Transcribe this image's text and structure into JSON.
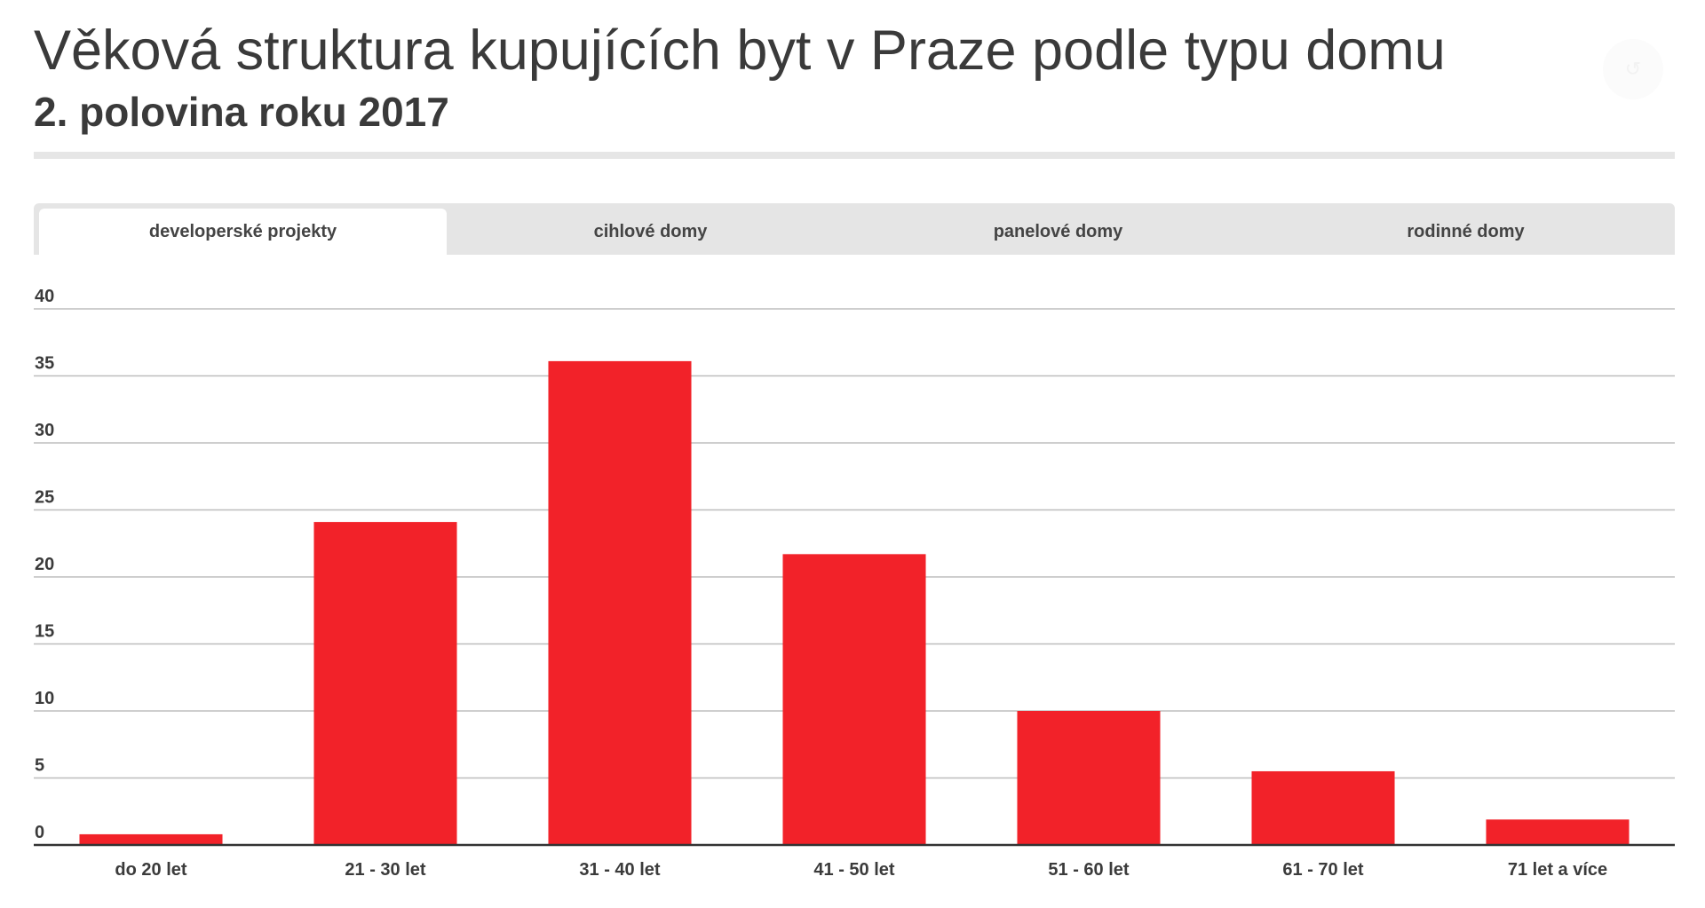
{
  "header": {
    "title": "Věková struktura kupujících byt v Praze podle typu domu",
    "subtitle": "2. polovina roku 2017"
  },
  "tabs": [
    {
      "label": "developerské projekty",
      "active": true
    },
    {
      "label": "cihlové domy",
      "active": false
    },
    {
      "label": "panelové domy",
      "active": false
    },
    {
      "label": "rodinné domy",
      "active": false
    }
  ],
  "colors": {
    "bar": "#f22229",
    "grid": "#bdbdbd",
    "axis": "#333333",
    "text": "#3b3b3b",
    "tab_bg": "#e5e5e5"
  },
  "chart_data": {
    "type": "bar",
    "categories": [
      "do 20 let",
      "21 - 30 let",
      "31 - 40 let",
      "41 - 50 let",
      "51 - 60 let",
      "61 - 70 let",
      "71 let a více"
    ],
    "values": [
      0.8,
      24.1,
      36.1,
      21.7,
      10.0,
      5.5,
      1.9
    ],
    "yticks": [
      0,
      5,
      10,
      15,
      20,
      25,
      30,
      35,
      40
    ],
    "ylim": [
      0,
      40
    ],
    "grid": true,
    "xlabel": "",
    "ylabel": ""
  }
}
